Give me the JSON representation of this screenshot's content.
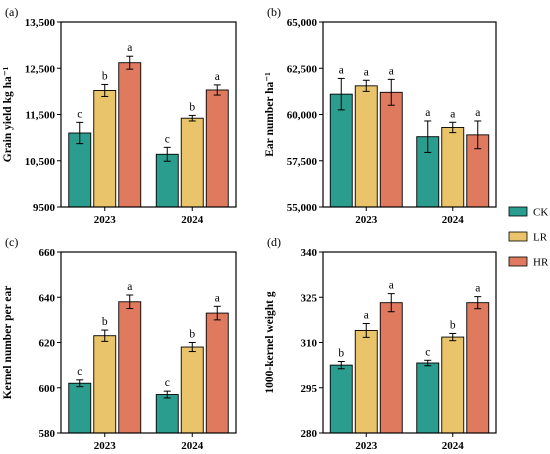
{
  "legend": {
    "items": [
      {
        "label": "CK",
        "color": "#2a9d8f"
      },
      {
        "label": "LR",
        "color": "#e9c46a"
      },
      {
        "label": "HR",
        "color": "#e07a5f"
      }
    ]
  },
  "chart_data": [
    {
      "type": "bar",
      "panel_label": "(a)",
      "ylabel": "Grain yield kg ha⁻¹",
      "categories": [
        "2023",
        "2024"
      ],
      "ylim": [
        9500,
        13500
      ],
      "yticks": [
        9500,
        10500,
        11500,
        12500,
        13500
      ],
      "ytick_labels": [
        "9500",
        "10,500",
        "11,500",
        "12,500",
        "13,500"
      ],
      "series": [
        {
          "name": "CK",
          "values": [
            11100,
            10640
          ],
          "errors": [
            230,
            150
          ],
          "letters": [
            "c",
            "c"
          ]
        },
        {
          "name": "LR",
          "values": [
            12020,
            11420
          ],
          "errors": [
            130,
            60
          ],
          "letters": [
            "b",
            "b"
          ]
        },
        {
          "name": "HR",
          "values": [
            12620,
            12030
          ],
          "errors": [
            140,
            110
          ],
          "letters": [
            "a",
            "a"
          ]
        }
      ]
    },
    {
      "type": "bar",
      "panel_label": "(b)",
      "ylabel": "Ear number ha⁻¹",
      "categories": [
        "2023",
        "2024"
      ],
      "ylim": [
        55000,
        65000
      ],
      "yticks": [
        55000,
        57500,
        60000,
        62500,
        65000
      ],
      "ytick_labels": [
        "55,000",
        "57,500",
        "60,000",
        "62,500",
        "65,000"
      ],
      "series": [
        {
          "name": "CK",
          "values": [
            61100,
            58800
          ],
          "errors": [
            850,
            850
          ],
          "letters": [
            "a",
            "a"
          ]
        },
        {
          "name": "LR",
          "values": [
            61550,
            59300
          ],
          "errors": [
            300,
            280
          ],
          "letters": [
            "a",
            "a"
          ]
        },
        {
          "name": "HR",
          "values": [
            61200,
            58900
          ],
          "errors": [
            700,
            750
          ],
          "letters": [
            "a",
            "a"
          ]
        }
      ]
    },
    {
      "type": "bar",
      "panel_label": "(c)",
      "ylabel": "Kernel number per ear",
      "categories": [
        "2023",
        "2024"
      ],
      "ylim": [
        580,
        660
      ],
      "yticks": [
        580,
        600,
        620,
        640,
        660
      ],
      "ytick_labels": [
        "580",
        "600",
        "620",
        "640",
        "660"
      ],
      "series": [
        {
          "name": "CK",
          "values": [
            602,
            597
          ],
          "errors": [
            1.5,
            1.5
          ],
          "letters": [
            "c",
            "c"
          ]
        },
        {
          "name": "LR",
          "values": [
            623,
            618
          ],
          "errors": [
            2.5,
            2.0
          ],
          "letters": [
            "b",
            "b"
          ]
        },
        {
          "name": "HR",
          "values": [
            638,
            633
          ],
          "errors": [
            3.0,
            3.0
          ],
          "letters": [
            "a",
            "a"
          ]
        }
      ]
    },
    {
      "type": "bar",
      "panel_label": "(d)",
      "ylabel": "1000-kernel weight g",
      "categories": [
        "2023",
        "2024"
      ],
      "ylim": [
        280,
        340
      ],
      "yticks": [
        280,
        295,
        310,
        325,
        340
      ],
      "ytick_labels": [
        "280",
        "295",
        "310",
        "325",
        "340"
      ],
      "series": [
        {
          "name": "CK",
          "values": [
            302.5,
            303.2
          ],
          "errors": [
            1.2,
            0.9
          ],
          "letters": [
            "b",
            "c"
          ]
        },
        {
          "name": "LR",
          "values": [
            314,
            311.8
          ],
          "errors": [
            2.3,
            1.2
          ],
          "letters": [
            "a",
            "b"
          ]
        },
        {
          "name": "HR",
          "values": [
            323.2,
            323.2
          ],
          "errors": [
            3.0,
            2.0
          ],
          "letters": [
            "a",
            "a"
          ]
        }
      ]
    }
  ]
}
